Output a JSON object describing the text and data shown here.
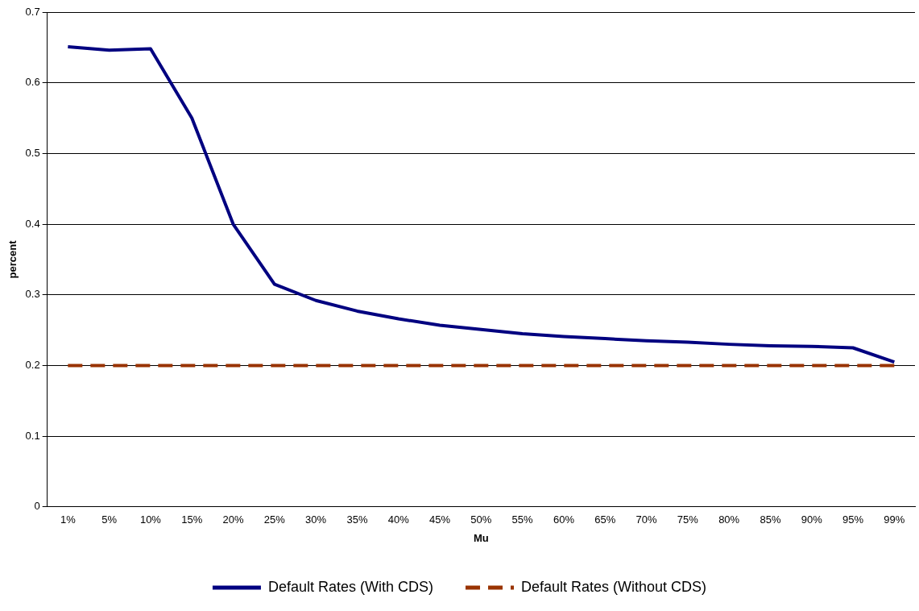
{
  "chart_data": {
    "type": "line",
    "xlabel": "Mu",
    "ylabel": "percent",
    "categories": [
      "1%",
      "5%",
      "10%",
      "15%",
      "20%",
      "25%",
      "30%",
      "35%",
      "40%",
      "45%",
      "50%",
      "55%",
      "60%",
      "65%",
      "70%",
      "75%",
      "80%",
      "85%",
      "90%",
      "95%",
      "99%"
    ],
    "series": [
      {
        "name": "Default Rates (With CDS)",
        "color": "#000080",
        "line_style": "solid",
        "values": [
          0.651,
          0.646,
          0.648,
          0.55,
          0.4,
          0.315,
          0.292,
          0.277,
          0.266,
          0.257,
          0.251,
          0.245,
          0.241,
          0.238,
          0.235,
          0.233,
          0.23,
          0.228,
          0.227,
          0.225,
          0.205
        ]
      },
      {
        "name": "Default Rates (Without CDS)",
        "color": "#993300",
        "line_style": "dashed",
        "values": [
          0.2,
          0.2,
          0.2,
          0.2,
          0.2,
          0.2,
          0.2,
          0.2,
          0.2,
          0.2,
          0.2,
          0.2,
          0.2,
          0.2,
          0.2,
          0.2,
          0.2,
          0.2,
          0.2,
          0.2,
          0.2
        ]
      }
    ],
    "ylim": [
      0,
      0.7
    ],
    "yticks": [
      0,
      0.1,
      0.2,
      0.3,
      0.4,
      0.5,
      0.6,
      0.7
    ],
    "grid": "y",
    "legend": "bottom",
    "marker": "none"
  }
}
